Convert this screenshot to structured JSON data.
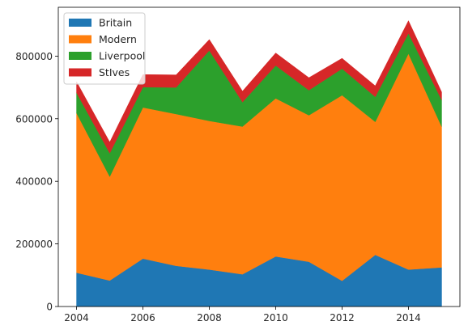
{
  "chart_data": {
    "type": "area",
    "stacked": true,
    "x": [
      2004,
      2005,
      2006,
      2007,
      2008,
      2009,
      2010,
      2011,
      2012,
      2013,
      2014,
      2015
    ],
    "series": [
      {
        "name": "Britain",
        "color": "#1f77b4",
        "values": [
          108000,
          83000,
          153000,
          130000,
          118000,
          103000,
          160000,
          143000,
          82000,
          165000,
          118000,
          125000
        ]
      },
      {
        "name": "Modern",
        "color": "#ff7f0e",
        "values": [
          510000,
          332000,
          483000,
          485000,
          475000,
          472000,
          505000,
          468000,
          593000,
          425000,
          690000,
          450000
        ]
      },
      {
        "name": "Liverpool",
        "color": "#2ca02c",
        "values": [
          65000,
          75000,
          65000,
          85000,
          225000,
          78000,
          105000,
          80000,
          85000,
          80000,
          65000,
          85000
        ]
      },
      {
        "name": "StIves",
        "color": "#d62728",
        "values": [
          35000,
          35000,
          40000,
          40000,
          35000,
          35000,
          40000,
          40000,
          33000,
          35000,
          40000,
          25000
        ]
      }
    ],
    "xticks": [
      2004,
      2006,
      2008,
      2010,
      2012,
      2014
    ],
    "yticks": [
      0,
      200000,
      400000,
      600000,
      800000
    ],
    "xlim": [
      2003.45,
      2015.55
    ],
    "ylim": [
      0,
      956000
    ],
    "legend_position": "upper-left",
    "grid": false
  }
}
